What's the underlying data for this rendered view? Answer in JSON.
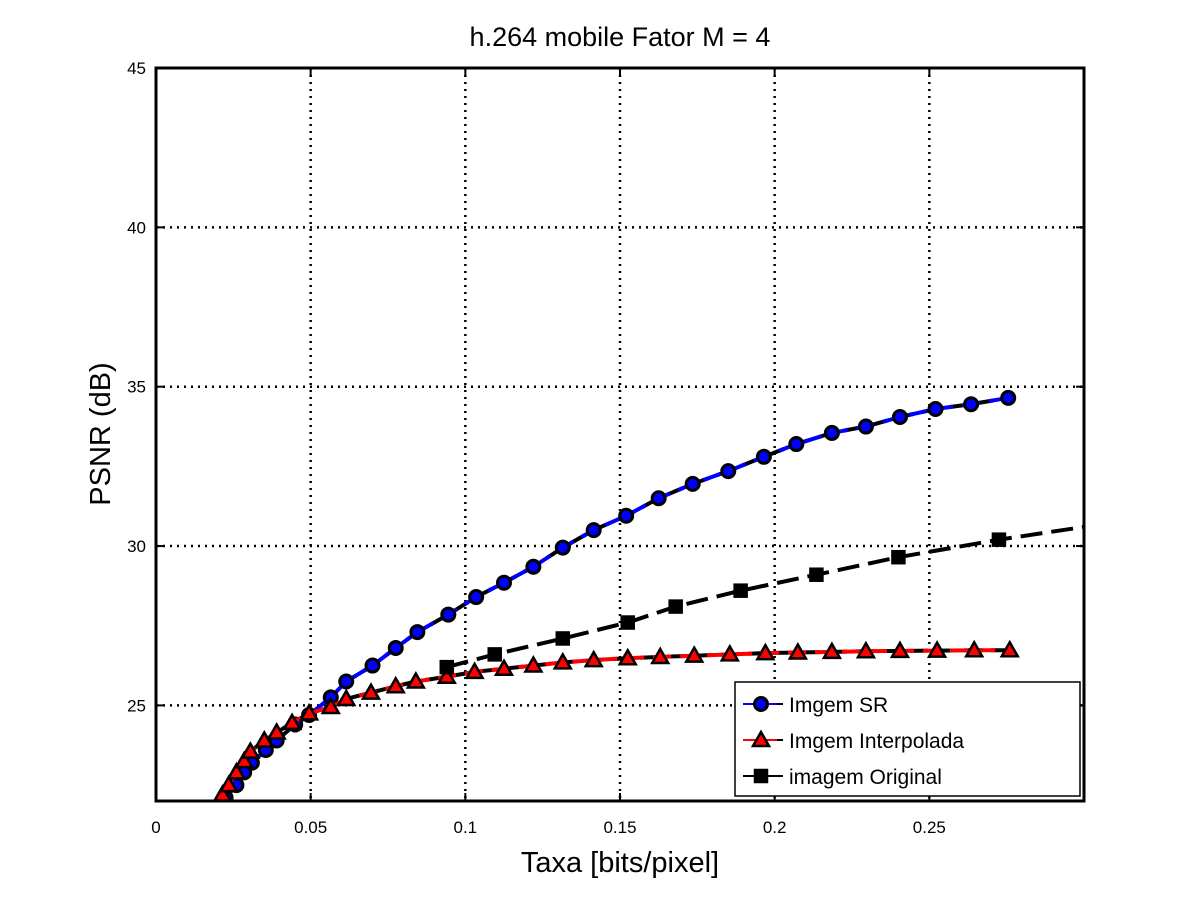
{
  "chart_data": {
    "type": "line",
    "title": "h.264 mobile Fator M = 4",
    "xlabel": "Taxa [bits/pixel]",
    "ylabel": "PSNR (dB)",
    "xlim": [
      0,
      0.3
    ],
    "ylim": [
      22,
      45
    ],
    "xticks": [
      0,
      0.05,
      0.1,
      0.15,
      0.2,
      0.25
    ],
    "xtick_labels": [
      "0",
      "0.05",
      "0.1",
      "0.15",
      "0.2",
      "0.25"
    ],
    "yticks": [
      25,
      30,
      35,
      40,
      45
    ],
    "ytick_labels": [
      "25",
      "30",
      "35",
      "40",
      "45"
    ],
    "grid": true,
    "legend_position": "bottom-right",
    "series": [
      {
        "name": "Imgem SR",
        "color": "#0000ff",
        "marker": "circle",
        "x": [
          0.0225,
          0.026,
          0.0285,
          0.031,
          0.0355,
          0.039,
          0.045,
          0.0495,
          0.0565,
          0.0615,
          0.07,
          0.0775,
          0.0845,
          0.0945,
          0.1035,
          0.1125,
          0.122,
          0.1315,
          0.1415,
          0.152,
          0.1625,
          0.1735,
          0.185,
          0.1965,
          0.207,
          0.2185,
          0.2295,
          0.2405,
          0.252,
          0.2635,
          0.2755
        ],
        "y": [
          22.1,
          22.5,
          22.9,
          23.2,
          23.6,
          23.9,
          24.4,
          24.7,
          25.25,
          25.75,
          26.25,
          26.8,
          27.3,
          27.85,
          28.4,
          28.85,
          29.35,
          29.95,
          30.5,
          30.95,
          31.5,
          31.95,
          32.35,
          32.8,
          33.2,
          33.55,
          33.75,
          34.05,
          34.3,
          34.45,
          34.65
        ]
      },
      {
        "name": "Imgem Interpolada",
        "color": "#ff0000",
        "marker": "triangle",
        "x": [
          0.0215,
          0.0235,
          0.026,
          0.0285,
          0.0305,
          0.035,
          0.039,
          0.044,
          0.0495,
          0.0565,
          0.0615,
          0.0695,
          0.0775,
          0.084,
          0.094,
          0.103,
          0.1125,
          0.122,
          0.1315,
          0.1415,
          0.1525,
          0.163,
          0.174,
          0.1855,
          0.197,
          0.2075,
          0.2185,
          0.2295,
          0.2405,
          0.2525,
          0.2645,
          0.276
        ],
        "y": [
          22.2,
          22.5,
          22.9,
          23.25,
          23.55,
          23.9,
          24.15,
          24.45,
          24.75,
          24.95,
          25.2,
          25.4,
          25.6,
          25.75,
          25.9,
          26.05,
          26.15,
          26.25,
          26.35,
          26.42,
          26.48,
          26.52,
          26.56,
          26.6,
          26.64,
          26.66,
          26.68,
          26.7,
          26.71,
          26.72,
          26.73,
          26.73
        ]
      },
      {
        "name": "imagem Original",
        "color": "#000000",
        "marker": "square",
        "x": [
          0.094,
          0.1095,
          0.1315,
          0.1525,
          0.168,
          0.189,
          0.2135,
          0.24,
          0.2725,
          0.3
        ],
        "y": [
          26.2,
          26.6,
          27.1,
          27.6,
          28.1,
          28.6,
          29.1,
          29.65,
          30.2,
          30.6
        ]
      }
    ]
  }
}
